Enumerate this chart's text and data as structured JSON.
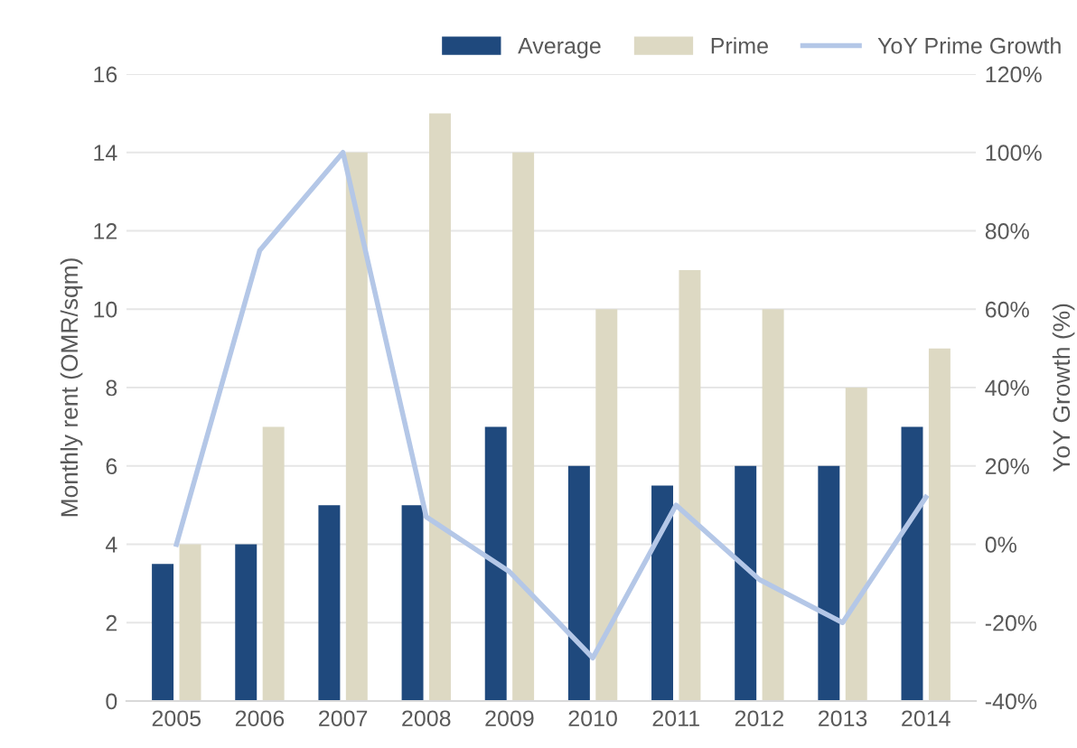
{
  "chart_data": {
    "type": "bar",
    "xlabel": null,
    "ylabel": "Monthly rent (OMR/sqm)",
    "y2label": "YoY Growth (%)",
    "categories": [
      "2005",
      "2006",
      "2007",
      "2008",
      "2009",
      "2010",
      "2011",
      "2012",
      "2013",
      "2014"
    ],
    "series": [
      {
        "name": "Average",
        "color": "#1f497d",
        "values": [
          3.5,
          4,
          5,
          5,
          7,
          6,
          5.5,
          6,
          6,
          7
        ]
      },
      {
        "name": "Prime",
        "color": "#ddd9c3",
        "values": [
          4,
          7,
          14,
          15,
          14,
          10,
          11,
          10,
          8,
          9
        ]
      },
      {
        "name": "YoY Prime Growth",
        "type": "line",
        "axis": "y2",
        "color": "#b4c7e7",
        "values": [
          0,
          75,
          100,
          7,
          -7,
          -29,
          10,
          -9,
          -20,
          12
        ]
      }
    ],
    "ylim": [
      0,
      16
    ],
    "yticks": [
      0,
      2,
      4,
      6,
      8,
      10,
      12,
      14,
      16
    ],
    "y2lim": [
      -40,
      120
    ],
    "y2ticks": [
      {
        "value": -40,
        "label": "-40%"
      },
      {
        "value": -20,
        "label": "-20%"
      },
      {
        "value": 0,
        "label": "0%"
      },
      {
        "value": 20,
        "label": "20%"
      },
      {
        "value": 40,
        "label": "40%"
      },
      {
        "value": 60,
        "label": "60%"
      },
      {
        "value": 80,
        "label": "80%"
      },
      {
        "value": 100,
        "label": "100%"
      },
      {
        "value": 120,
        "label": "120%"
      }
    ],
    "grid": "y",
    "legend": "top right"
  }
}
